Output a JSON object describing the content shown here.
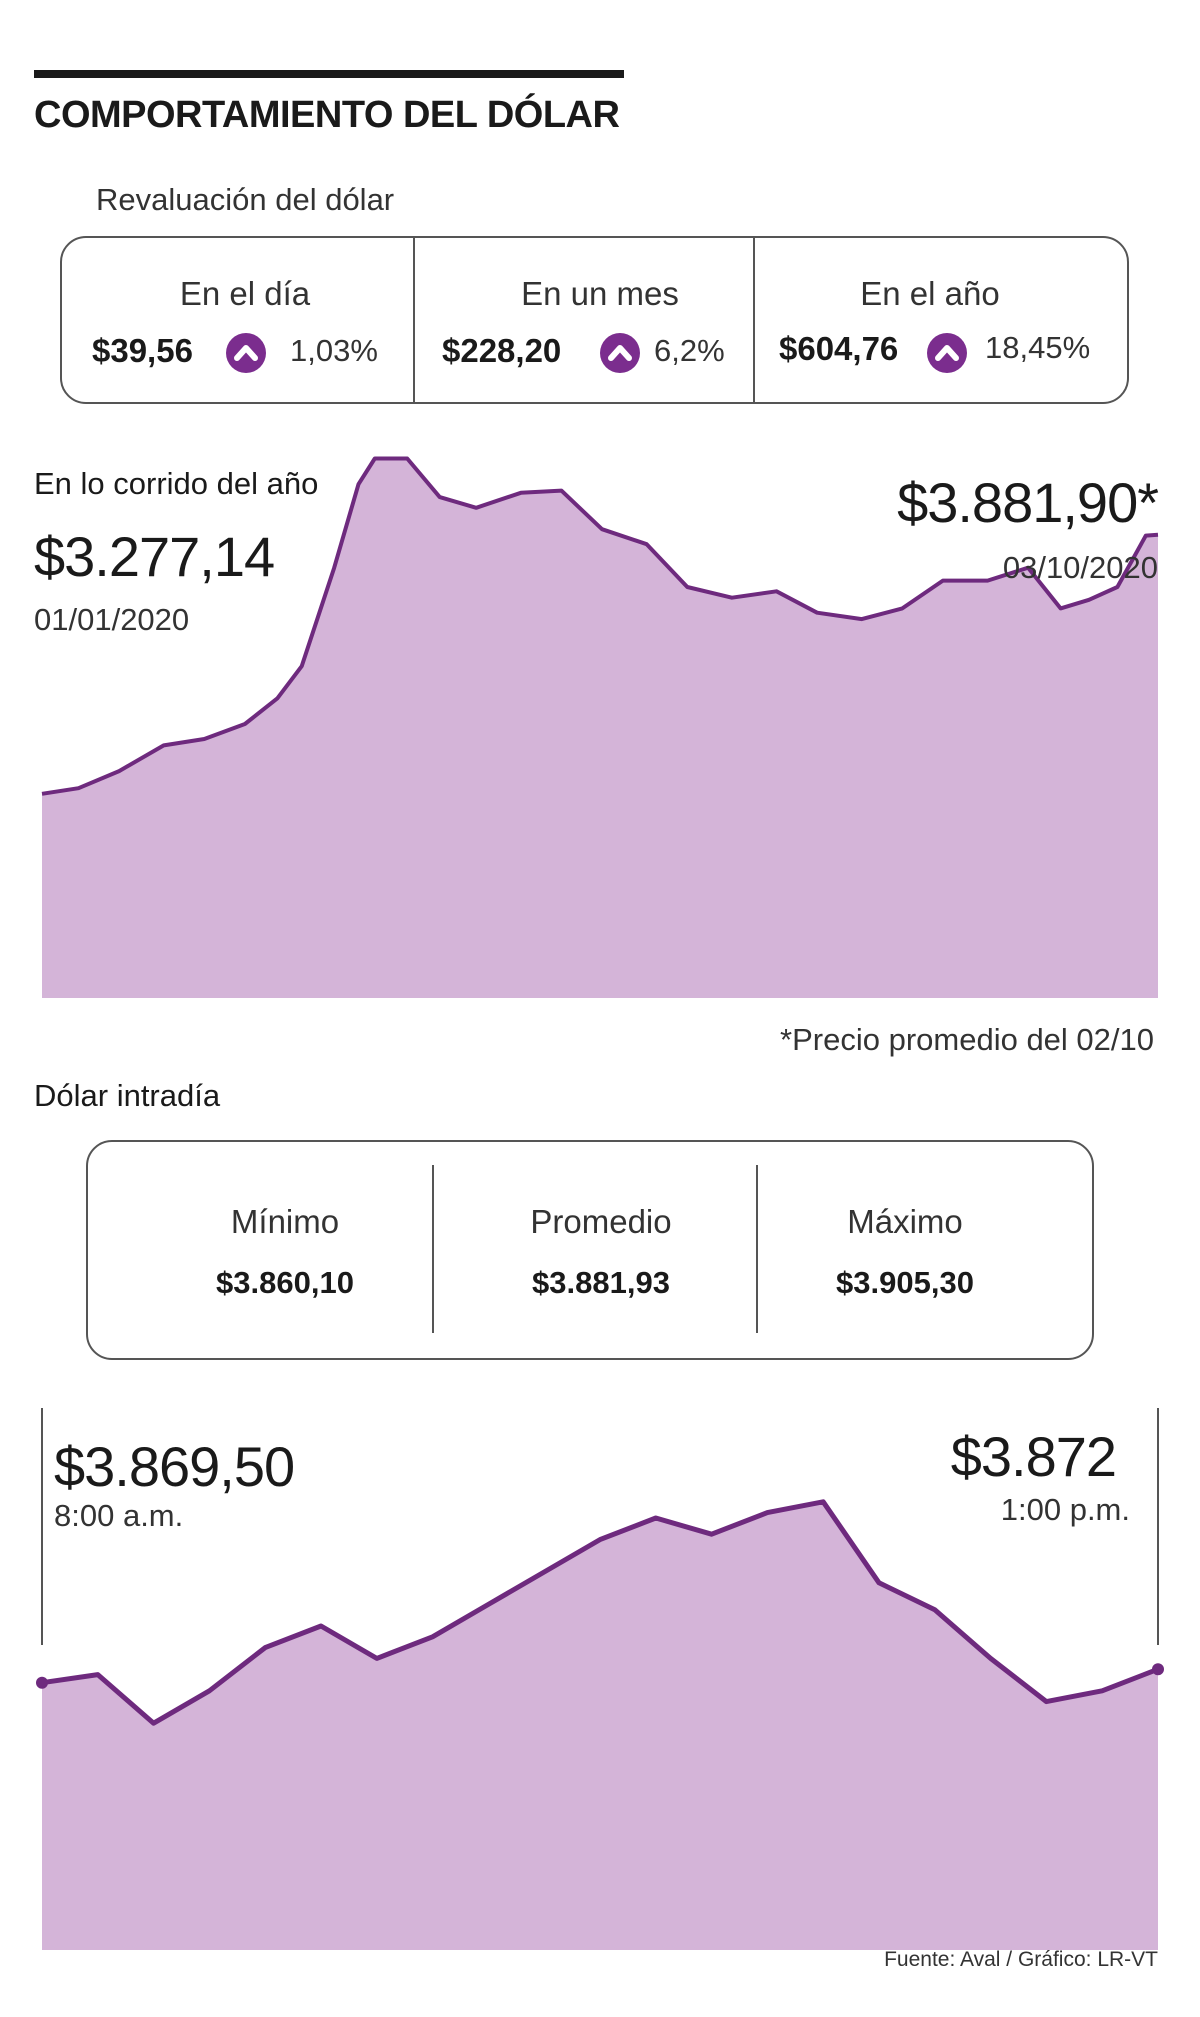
{
  "title": "COMPORTAMIENTO DEL DÓLAR",
  "revaluation": {
    "heading": "Revaluación del dólar",
    "cells": [
      {
        "label": "En el día",
        "value": "$39,56",
        "pct": "1,03%"
      },
      {
        "label": "En un mes",
        "value": "$228,20",
        "pct": "6,2%"
      },
      {
        "label": "En el año",
        "value": "$604,76",
        "pct": "18,45%"
      }
    ]
  },
  "year": {
    "heading": "En lo corrido del año",
    "start_value": "$3.277,14",
    "start_date": "01/01/2020",
    "end_value": "$3.881,90*",
    "end_date": "03/10/2020",
    "note": "*Precio promedio del 02/10"
  },
  "intraday": {
    "heading": "Dólar intradía",
    "stats": [
      {
        "label": "Mínimo",
        "value": "$3.860,10"
      },
      {
        "label": "Promedio",
        "value": "$3.881,93"
      },
      {
        "label": "Máximo",
        "value": "$3.905,30"
      }
    ],
    "start_value": "$3.869,50",
    "start_time": "8:00 a.m.",
    "end_value": "$3.872",
    "end_time": "1:00 p.m."
  },
  "source": "Fuente: Aval / Gráfico: LR-VT",
  "colors": {
    "line": "#6e2a7e",
    "fill": "#d4b4d8",
    "icon": "#7b2d8e"
  },
  "chart_data": [
    {
      "type": "area",
      "x_range": [
        "2020-01-01",
        "2020-10-03"
      ],
      "ylim": [
        2800,
        4150
      ],
      "x": [
        "2020-01-01",
        "2020-01-10",
        "2020-01-20",
        "2020-01-31",
        "2020-02-10",
        "2020-02-20",
        "2020-02-28",
        "2020-03-05",
        "2020-03-09",
        "2020-03-13",
        "2020-03-19",
        "2020-03-23",
        "2020-03-31",
        "2020-04-08",
        "2020-04-17",
        "2020-04-28",
        "2020-05-08",
        "2020-05-18",
        "2020-05-29",
        "2020-06-08",
        "2020-06-19",
        "2020-06-30",
        "2020-07-10",
        "2020-07-21",
        "2020-07-31",
        "2020-08-10",
        "2020-08-21",
        "2020-08-31",
        "2020-09-08",
        "2020-09-15",
        "2020-09-22",
        "2020-09-29",
        "2020-10-02"
      ],
      "values": [
        3277,
        3290,
        3330,
        3390,
        3405,
        3440,
        3500,
        3575,
        3690,
        3805,
        4000,
        4060,
        4060,
        3970,
        3945,
        3980,
        3985,
        3895,
        3860,
        3760,
        3735,
        3750,
        3700,
        3685,
        3710,
        3775,
        3775,
        3805,
        3710,
        3730,
        3760,
        3880,
        3882
      ]
    },
    {
      "type": "area",
      "x_range": [
        "8:00 a.m.",
        "1:00 p.m."
      ],
      "ylim": [
        3820,
        3920
      ],
      "x": [
        "8:00",
        "8:15",
        "8:30",
        "8:45",
        "9:00",
        "9:15",
        "9:30",
        "9:45",
        "10:00",
        "10:15",
        "10:30",
        "10:45",
        "11:00",
        "11:15",
        "11:30",
        "11:45",
        "12:00",
        "12:15",
        "12:30",
        "12:45",
        "13:00"
      ],
      "values": [
        3869.5,
        3871,
        3862,
        3868,
        3876,
        3880,
        3874,
        3878,
        3884,
        3890,
        3896,
        3900,
        3897,
        3901,
        3903,
        3888,
        3883,
        3874,
        3866,
        3868,
        3872
      ]
    }
  ]
}
